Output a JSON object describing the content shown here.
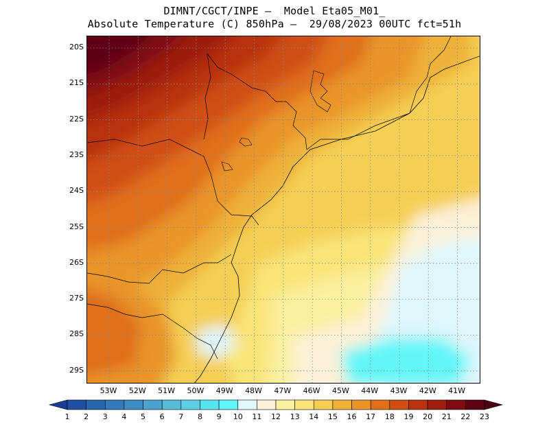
{
  "header": {
    "line1": "DIMNT/CGCT/INPE –  Model Eta05_M01_",
    "line2": "Absolute Temperature (C) 850hPa –  29/08/2023 00UTC fct=51h"
  },
  "map": {
    "latitude_labels": [
      "20S",
      "21S",
      "22S",
      "23S",
      "24S",
      "25S",
      "26S",
      "27S",
      "28S",
      "29S"
    ],
    "longitude_labels": [
      "53W",
      "52W",
      "51W",
      "50W",
      "49W",
      "48W",
      "47W",
      "46W",
      "45W",
      "44W",
      "43W",
      "42W",
      "41W"
    ],
    "features": [
      "temperature-shading",
      "coastline",
      "state-borders",
      "lakes",
      "graticule"
    ]
  },
  "legend": {
    "labels": [
      "1",
      "2",
      "3",
      "4",
      "5",
      "6",
      "7",
      "8",
      "9",
      "10",
      "11",
      "12",
      "13",
      "14",
      "15",
      "16",
      "17",
      "18",
      "19",
      "20",
      "21",
      "22",
      "23"
    ],
    "colors": [
      "#1a3e96",
      "#1f4fa2",
      "#2a66ae",
      "#3479b8",
      "#3f8cc2",
      "#4ba3cf",
      "#58bcd9",
      "#5ccfe4",
      "#56e4f1",
      "#62f6f8",
      "#dff6fb",
      "#fbf1d8",
      "#fbf0a0",
      "#f9e478",
      "#f5cf55",
      "#eeb23a",
      "#e99529",
      "#e06f1b",
      "#cf4f12",
      "#b8320e",
      "#9e1e0e",
      "#7f0b14",
      "#5e0515",
      "#4a0210"
    ]
  }
}
